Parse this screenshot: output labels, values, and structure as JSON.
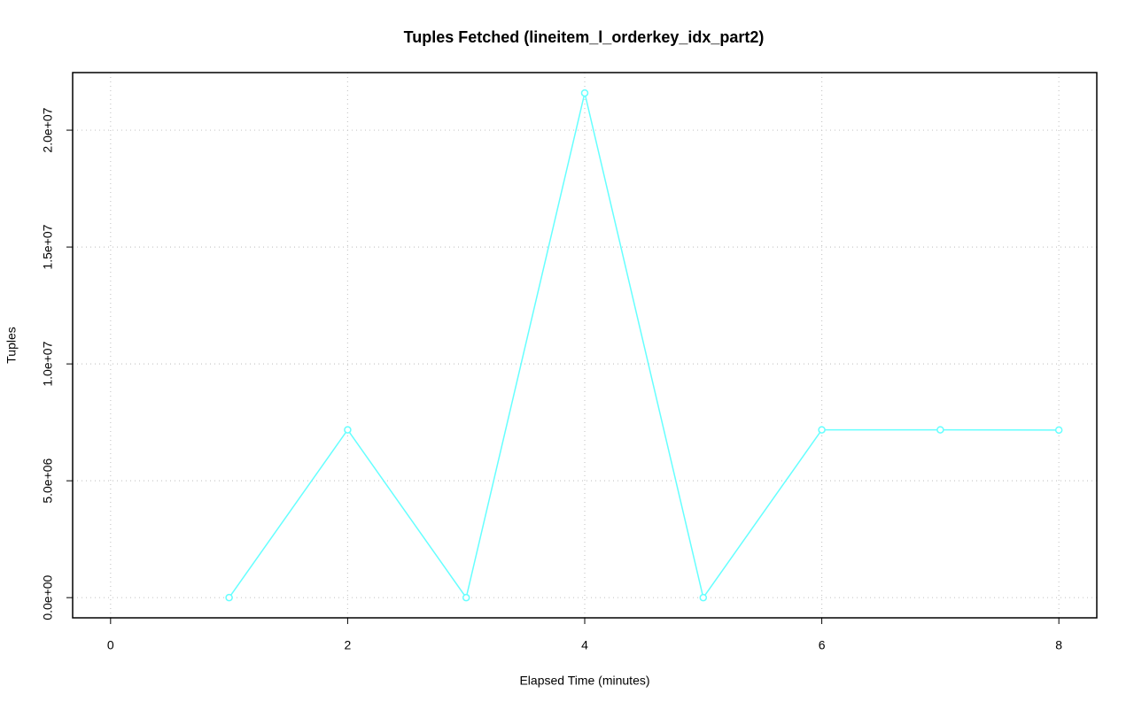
{
  "chart_data": {
    "type": "line",
    "title": "Tuples Fetched (lineitem_l_orderkey_idx_part2)",
    "x_label": "Elapsed Time (minutes)",
    "y_label": "Tuples",
    "x": [
      1,
      2,
      3,
      4,
      5,
      6,
      7,
      8
    ],
    "values": [
      0,
      7180000,
      0,
      21590000,
      0,
      7180000,
      7180000,
      7170000
    ],
    "color": "#66ffff",
    "xlim": [
      -0.32,
      8.32
    ],
    "ylim": [
      -864000,
      22464000
    ],
    "xticks": [
      0,
      2,
      4,
      6,
      8
    ],
    "yticks": [
      {
        "value": 0,
        "label": "0.0e+00"
      },
      {
        "value": 5000000,
        "label": "5.0e+06"
      },
      {
        "value": 10000000,
        "label": "1.0e+07"
      },
      {
        "value": 15000000,
        "label": "1.5e+07"
      },
      {
        "value": 20000000,
        "label": "2.0e+07"
      }
    ],
    "grid": true
  }
}
